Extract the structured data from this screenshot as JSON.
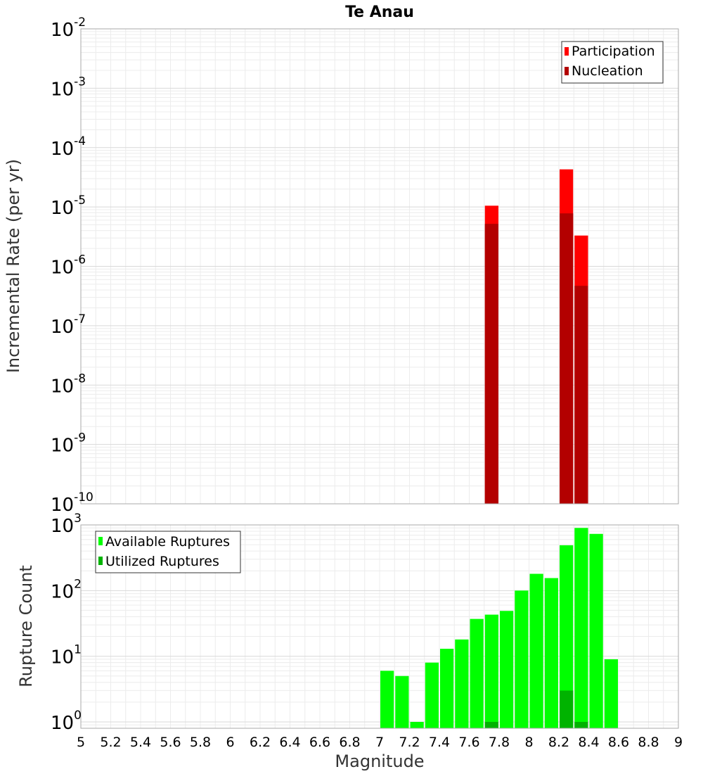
{
  "chart_data": [
    {
      "type": "bar",
      "title": "Te Anau",
      "ylabel": "Incremental Rate (per yr)",
      "xlabel": "",
      "yscale": "log",
      "ylim": [
        1e-10,
        0.01
      ],
      "xlim": [
        5,
        9
      ],
      "bar_width": 0.1,
      "legend_position": "top-right",
      "y_ticks": [
        {
          "base": "10",
          "exp": "-10",
          "value": 1e-10
        },
        {
          "base": "10",
          "exp": "-9",
          "value": 1e-09
        },
        {
          "base": "10",
          "exp": "-8",
          "value": 1e-08
        },
        {
          "base": "10",
          "exp": "-7",
          "value": 1e-07
        },
        {
          "base": "10",
          "exp": "-6",
          "value": 1e-06
        },
        {
          "base": "10",
          "exp": "-5",
          "value": 1e-05
        },
        {
          "base": "10",
          "exp": "-4",
          "value": 0.0001
        },
        {
          "base": "10",
          "exp": "-3",
          "value": 0.001
        },
        {
          "base": "10",
          "exp": "-2",
          "value": 0.01
        }
      ],
      "series": [
        {
          "name": "Participation",
          "color": "#ff0000",
          "x": [
            7.75,
            8.25,
            8.35
          ],
          "values": [
            1.05e-05,
            4.3e-05,
            3.3e-06
          ]
        },
        {
          "name": "Nucleation",
          "color": "#b30000",
          "x": [
            7.75,
            8.25,
            8.35
          ],
          "values": [
            5.2e-06,
            7.8e-06,
            4.7e-07
          ]
        }
      ]
    },
    {
      "type": "bar",
      "title": "",
      "ylabel": "Rupture Count",
      "xlabel": "Magnitude",
      "yscale": "log",
      "ylim": [
        0.8,
        1000
      ],
      "xlim": [
        5,
        9
      ],
      "bar_width": 0.1,
      "legend_position": "top-left",
      "x_ticks": [
        "5",
        "5.2",
        "5.4",
        "5.6",
        "5.8",
        "6",
        "6.2",
        "6.4",
        "6.6",
        "6.8",
        "7",
        "7.2",
        "7.4",
        "7.6",
        "7.8",
        "8",
        "8.2",
        "8.4",
        "8.6",
        "8.8",
        "9"
      ],
      "y_ticks": [
        {
          "base": "10",
          "exp": "0",
          "value": 1
        },
        {
          "base": "10",
          "exp": "1",
          "value": 10
        },
        {
          "base": "10",
          "exp": "2",
          "value": 100
        },
        {
          "base": "10",
          "exp": "3",
          "value": 1000
        }
      ],
      "series": [
        {
          "name": "Available Ruptures",
          "color": "#00ff00",
          "x": [
            7.05,
            7.15,
            7.25,
            7.35,
            7.45,
            7.55,
            7.65,
            7.75,
            7.85,
            7.95,
            8.05,
            8.15,
            8.25,
            8.35,
            8.45,
            8.55
          ],
          "values": [
            6,
            5,
            1,
            8,
            13,
            18,
            37,
            43,
            49,
            100,
            180,
            155,
            490,
            900,
            730,
            9
          ]
        },
        {
          "name": "Utilized Ruptures",
          "color": "#00b300",
          "x": [
            7.75,
            8.25,
            8.35
          ],
          "values": [
            1,
            3,
            1
          ]
        }
      ]
    }
  ]
}
